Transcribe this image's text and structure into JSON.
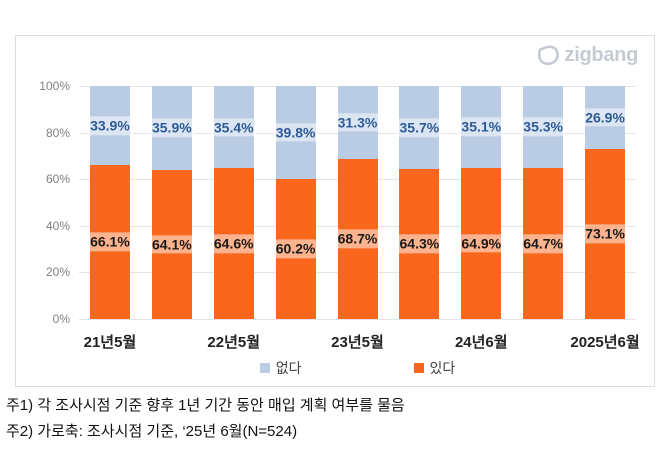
{
  "logo": {
    "text": "zigbang"
  },
  "chart_data": {
    "type": "bar",
    "stacked": true,
    "unit": "%",
    "ylim": [
      0,
      100
    ],
    "grid": true,
    "y_ticks": [
      "0%",
      "20%",
      "40%",
      "60%",
      "80%",
      "100%"
    ],
    "x_tick_labels": [
      "21년5월",
      "",
      "22년5월",
      "",
      "23년5월",
      "",
      "24년6월",
      "",
      "2025년6월"
    ],
    "series": [
      {
        "name": "있다",
        "color": "#f8671c",
        "label_color": "#1a1a1a",
        "values": [
          66.1,
          64.1,
          64.6,
          60.2,
          68.7,
          64.3,
          64.9,
          64.7,
          73.1
        ]
      },
      {
        "name": "없다",
        "color": "#b9cce4",
        "label_color": "#2e5b97",
        "values": [
          33.9,
          35.9,
          35.4,
          39.8,
          31.3,
          35.7,
          35.1,
          35.3,
          26.9
        ]
      }
    ],
    "legend": {
      "position": "bottom",
      "order": [
        "없다",
        "있다"
      ]
    }
  },
  "colors": {
    "grid": "#e4e4e4",
    "axis_text": "#808080",
    "logo_gray": "#c5cad3"
  },
  "notes": [
    "주1) 각 조사시점 기준 향후 1년 기간 동안 매입 계획 여부를 물음",
    "주2) 가로축: 조사시점 기준, ‘25년 6월(N=524)"
  ]
}
